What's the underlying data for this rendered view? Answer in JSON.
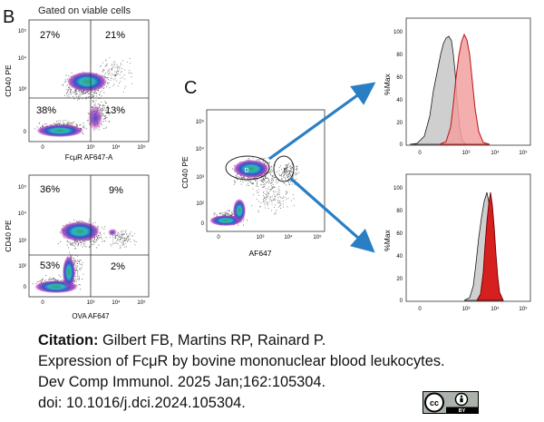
{
  "figure": {
    "panel_b": {
      "letter": "B",
      "header": "Gated on viable cells",
      "top_plot": {
        "ylabel": "CD40 PE",
        "xlabel": "FcμR AF647-A",
        "quadrants": {
          "ul": "27%",
          "ur": "21%",
          "ll": "38%",
          "lr": "13%"
        },
        "xticks": [
          "0",
          "10³",
          "10⁴",
          "10⁵"
        ],
        "yticks": [
          "10⁵",
          "10⁴",
          "10³",
          "0"
        ]
      },
      "bottom_plot": {
        "ylabel": "CD40 PE",
        "xlabel": "OVA AF647",
        "quadrants": {
          "ul": "36%",
          "ur": "9%",
          "ll": "53%",
          "lr": "2%"
        },
        "xticks": [
          "0",
          "10³",
          "10⁴",
          "10⁵"
        ],
        "yticks": [
          "10⁵",
          "10⁴",
          "10³",
          "10²",
          "0"
        ]
      }
    },
    "panel_c": {
      "letter": "C",
      "plot": {
        "ylabel": "CD40 PE",
        "xlabel": "AF647",
        "xticks": [
          "0",
          "10³",
          "10⁴",
          "10⁵"
        ],
        "yticks": [
          "10⁵",
          "10⁴",
          "10³",
          "10²",
          "0"
        ],
        "gate_d": "D",
        "gate_e": "E"
      },
      "hist_top": {
        "ylabel": "%Max",
        "yticks": [
          "100",
          "80",
          "60",
          "40",
          "20",
          "0"
        ],
        "xticks": [
          "0",
          "10³",
          "10⁴",
          "10⁵"
        ]
      },
      "hist_bottom": {
        "ylabel": "%Max",
        "yticks": [
          "100",
          "80",
          "60",
          "40",
          "20",
          "0"
        ],
        "xticks": [
          "0",
          "10³",
          "10⁴",
          "10⁵"
        ]
      }
    },
    "colors": {
      "arrow": "#2a7fc4",
      "hist_gray": "#cfcfcf",
      "hist_red_light": "#f2a0a0",
      "hist_red_dark": "#d61f1f",
      "density_high": "#2fa36a",
      "density_mid": "#2d56c8",
      "density_low": "#b23bbd"
    }
  },
  "citation": {
    "label": "Citation:",
    "authors": "Gilbert FB, Martins RP, Rainard P.",
    "title": "Expression of FcμR by bovine mononuclear blood leukocytes.",
    "journal": "Dev Comp Immunol. 2025 Jan;162:105304.",
    "doi": "doi: 10.1016/j.dci.2024.105304."
  },
  "license_badge": {
    "icon": "cc-by-icon",
    "cc": "cc",
    "by": "BY"
  }
}
